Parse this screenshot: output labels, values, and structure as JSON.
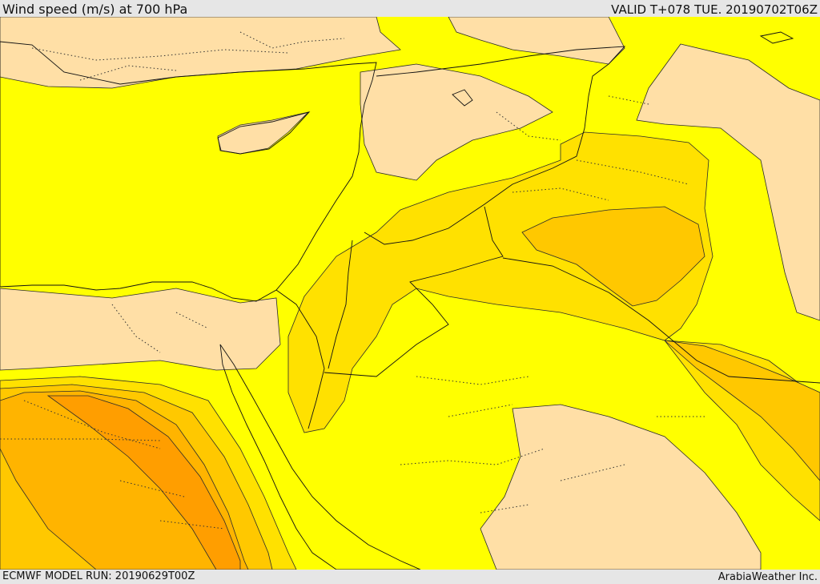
{
  "header": {
    "title": "Wind speed (m/s) at 700 hPa",
    "valid": "VALID T+078 TUE. 20190702T06Z"
  },
  "footer": {
    "model_run": "ECMWF MODEL RUN: 20190629T00Z",
    "credit": "ArabiaWeather Inc."
  },
  "colors": {
    "sea": "#ffffff",
    "band_lowest": "#ffdfa6",
    "band_low": "#ffff00",
    "band_mid": "#ffe100",
    "band_high": "#ffc800",
    "band_higher": "#ffb400",
    "band_highest": "#ff9e00"
  }
}
